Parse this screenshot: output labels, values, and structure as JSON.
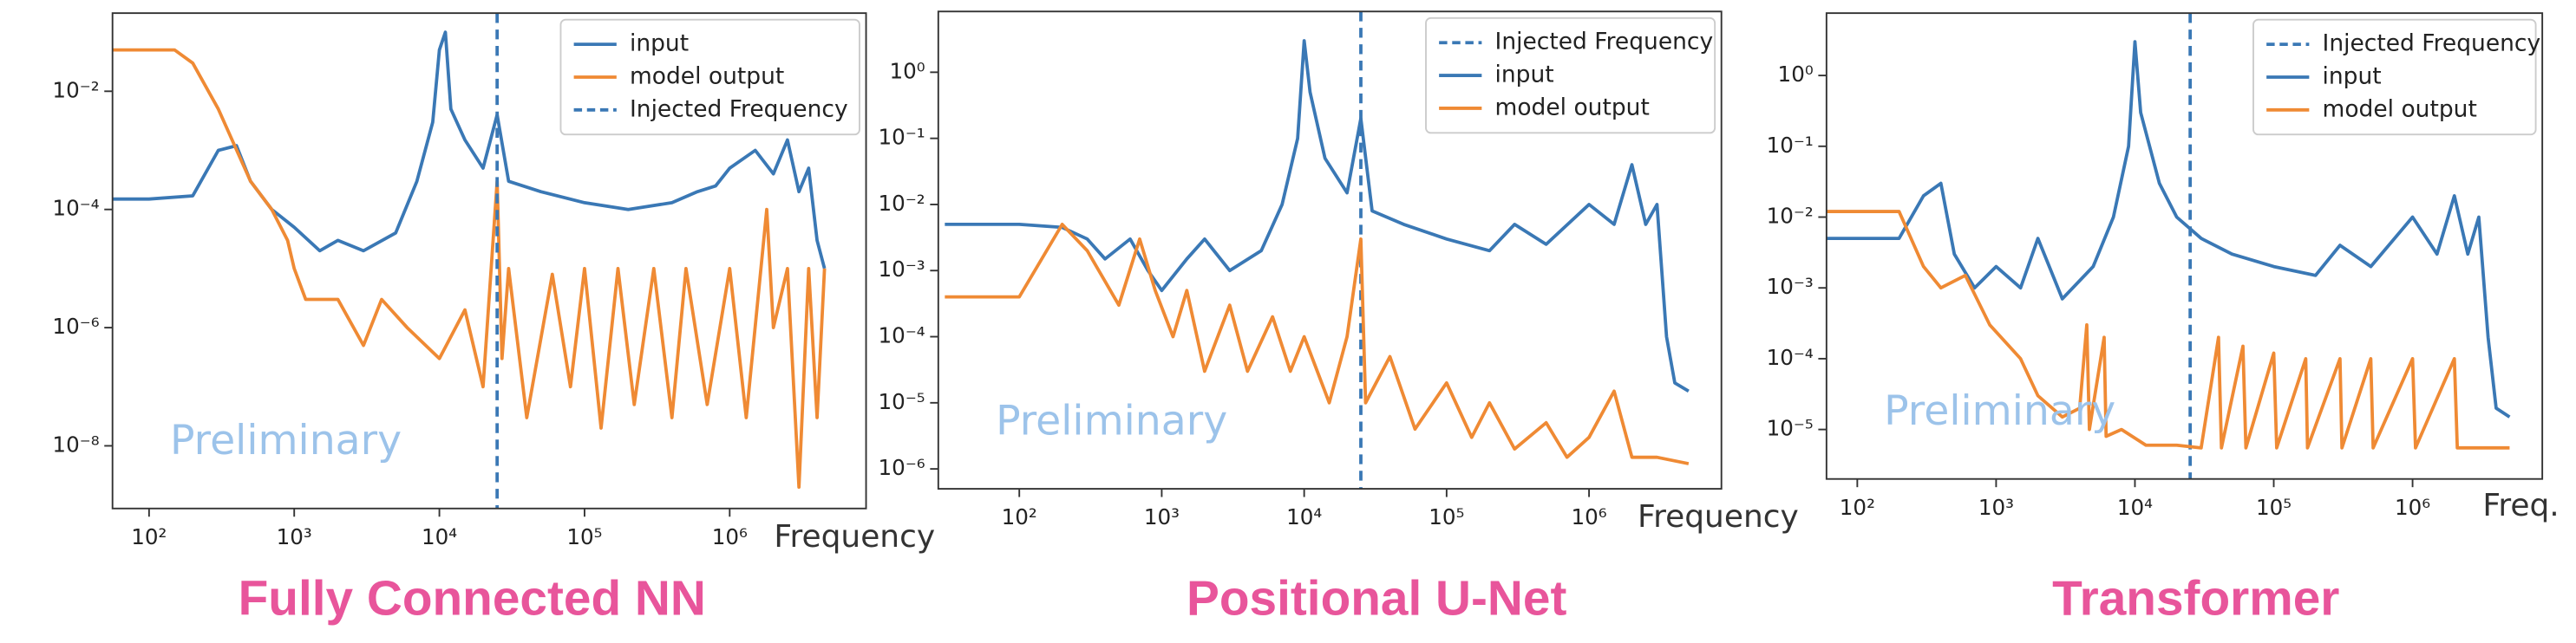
{
  "chart_data": [
    {
      "type": "line",
      "title": "Fully Connected NN",
      "xlabel": "Frequency",
      "annotation": "Preliminary",
      "xscale": "log",
      "yscale": "log",
      "legend": "upper right",
      "xlim": [
        56,
        8700000
      ],
      "ylim": [
        8.7e-10,
        0.21
      ],
      "xticks": [
        {
          "value": 100,
          "label": "10²"
        },
        {
          "value": 1000,
          "label": "10³"
        },
        {
          "value": 10000,
          "label": "10⁴"
        },
        {
          "value": 100000,
          "label": "10⁵"
        },
        {
          "value": 1000000,
          "label": "10⁶"
        }
      ],
      "yticks": [
        {
          "value": 0.01,
          "label": "10⁻²"
        },
        {
          "value": 0.0001,
          "label": "10⁻⁴"
        },
        {
          "value": 1e-06,
          "label": "10⁻⁶"
        },
        {
          "value": 1e-08,
          "label": "10⁻⁸"
        }
      ],
      "series": [
        {
          "name": "input",
          "color": "#3a78b5",
          "x": [
            56,
            100,
            200,
            300,
            400,
            500,
            700,
            1000,
            1500,
            2000,
            3000,
            5000,
            7000,
            9000,
            10000,
            11000,
            12000,
            15000,
            20000,
            25000,
            30000,
            50000,
            100000,
            200000,
            400000,
            600000,
            800000,
            1000000,
            1500000,
            2000000,
            2500000,
            3000000,
            3500000,
            4000000,
            4500000
          ],
          "values": [
            0.00015,
            0.00015,
            0.00017,
            0.001,
            0.0012,
            0.0003,
            0.0001,
            5e-05,
            2e-05,
            3e-05,
            2e-05,
            4e-05,
            0.0003,
            0.003,
            0.05,
            0.1,
            0.005,
            0.0015,
            0.0005,
            0.004,
            0.0003,
            0.0002,
            0.00013,
            0.0001,
            0.00013,
            0.0002,
            0.00025,
            0.0005,
            0.001,
            0.0004,
            0.0015,
            0.0002,
            0.0005,
            3e-05,
            1e-05
          ]
        },
        {
          "name": "model output",
          "color": "#ef8a34",
          "x": [
            56,
            150,
            200,
            300,
            500,
            700,
            900,
            1000,
            1200,
            2000,
            3000,
            4000,
            6000,
            10000,
            15000,
            20000,
            25000,
            27000,
            30000,
            40000,
            60000,
            80000,
            100000,
            130000,
            170000,
            220000,
            300000,
            400000,
            500000,
            700000,
            1000000,
            1300000,
            1800000,
            2000000,
            2500000,
            3000000,
            3500000,
            4000000,
            4500000
          ],
          "values": [
            0.05,
            0.05,
            0.03,
            0.005,
            0.0003,
            0.0001,
            3e-05,
            1e-05,
            3e-06,
            3e-06,
            5e-07,
            3e-06,
            1e-06,
            3e-07,
            2e-06,
            1e-07,
            0.0003,
            3e-07,
            1e-05,
            3e-08,
            8e-06,
            1e-07,
            1e-05,
            2e-08,
            1e-05,
            5e-08,
            1e-05,
            3e-08,
            1e-05,
            5e-08,
            1e-05,
            3e-08,
            0.0001,
            1e-06,
            1e-05,
            2e-09,
            1e-05,
            3e-08,
            1e-05
          ]
        },
        {
          "name": "Injected Frequency",
          "color": "#3a78b5",
          "linestyle": "dashed",
          "x": [
            25000
          ]
        }
      ]
    },
    {
      "type": "line",
      "title": "Positional U-Net",
      "xlabel": "Frequency",
      "annotation": "Preliminary",
      "xscale": "log",
      "yscale": "log",
      "legend": "upper right",
      "xlim": [
        27,
        8500000
      ],
      "ylim": [
        5e-07,
        8.3
      ],
      "xticks": [
        {
          "value": 100,
          "label": "10²"
        },
        {
          "value": 1000,
          "label": "10³"
        },
        {
          "value": 10000,
          "label": "10⁴"
        },
        {
          "value": 100000,
          "label": "10⁵"
        },
        {
          "value": 1000000,
          "label": "10⁶"
        }
      ],
      "yticks": [
        {
          "value": 1,
          "label": "10⁰"
        },
        {
          "value": 0.1,
          "label": "10⁻¹"
        },
        {
          "value": 0.01,
          "label": "10⁻²"
        },
        {
          "value": 0.001,
          "label": "10⁻³"
        },
        {
          "value": 0.0001,
          "label": "10⁻⁴"
        },
        {
          "value": 1e-05,
          "label": "10⁻⁵"
        },
        {
          "value": 1e-06,
          "label": "10⁻⁶"
        }
      ],
      "series": [
        {
          "name": "Injected Frequency",
          "color": "#3a78b5",
          "linestyle": "dashed",
          "x": [
            25000
          ]
        },
        {
          "name": "input",
          "color": "#3a78b5",
          "x": [
            30,
            100,
            200,
            300,
            400,
            600,
            800,
            1000,
            1500,
            2000,
            3000,
            5000,
            7000,
            9000,
            10000,
            11000,
            14000,
            20000,
            25000,
            30000,
            50000,
            100000,
            200000,
            300000,
            500000,
            1000000,
            1500000,
            2000000,
            2500000,
            3000000,
            3500000,
            4000000,
            5000000
          ],
          "values": [
            0.005,
            0.005,
            0.0045,
            0.003,
            0.0015,
            0.003,
            0.001,
            0.0005,
            0.0015,
            0.003,
            0.001,
            0.002,
            0.01,
            0.1,
            3,
            0.5,
            0.05,
            0.015,
            0.2,
            0.008,
            0.005,
            0.003,
            0.002,
            0.005,
            0.0025,
            0.01,
            0.005,
            0.04,
            0.005,
            0.01,
            0.0001,
            2e-05,
            1.5e-05
          ]
        },
        {
          "name": "model output",
          "color": "#ef8a34",
          "x": [
            30,
            100,
            200,
            300,
            500,
            700,
            900,
            1200,
            1500,
            2000,
            3000,
            4000,
            6000,
            8000,
            10000,
            15000,
            20000,
            25000,
            27000,
            40000,
            60000,
            100000,
            150000,
            200000,
            300000,
            500000,
            700000,
            1000000,
            1500000,
            2000000,
            3000000,
            5000000
          ],
          "values": [
            0.0004,
            0.0004,
            0.005,
            0.002,
            0.0003,
            0.003,
            0.0005,
            0.0001,
            0.0005,
            3e-05,
            0.0003,
            3e-05,
            0.0002,
            3e-05,
            0.0001,
            1e-05,
            0.0001,
            0.003,
            1e-05,
            5e-05,
            4e-06,
            2e-05,
            3e-06,
            1e-05,
            2e-06,
            5e-06,
            1.5e-06,
            3e-06,
            1.5e-05,
            1.5e-06,
            1.5e-06,
            1.2e-06
          ]
        }
      ]
    },
    {
      "type": "line",
      "title": "Transformer",
      "xlabel": "Freq.",
      "annotation": "Preliminary",
      "xscale": "log",
      "yscale": "log",
      "legend": "upper right",
      "xlim": [
        60,
        8600000
      ],
      "ylim": [
        2e-06,
        7.6
      ],
      "xticks": [
        {
          "value": 100,
          "label": "10²"
        },
        {
          "value": 1000,
          "label": "10³"
        },
        {
          "value": 10000,
          "label": "10⁴"
        },
        {
          "value": 100000,
          "label": "10⁵"
        },
        {
          "value": 1000000,
          "label": "10⁶"
        }
      ],
      "yticks": [
        {
          "value": 1,
          "label": "10⁰"
        },
        {
          "value": 0.1,
          "label": "10⁻¹"
        },
        {
          "value": 0.01,
          "label": "10⁻²"
        },
        {
          "value": 0.001,
          "label": "10⁻³"
        },
        {
          "value": 0.0001,
          "label": "10⁻⁴"
        },
        {
          "value": 1e-05,
          "label": "10⁻⁵"
        }
      ],
      "series": [
        {
          "name": "Injected Frequency",
          "color": "#3a78b5",
          "linestyle": "dashed",
          "x": [
            25000
          ]
        },
        {
          "name": "input",
          "color": "#3a78b5",
          "x": [
            60,
            200,
            300,
            400,
            500,
            700,
            1000,
            1500,
            2000,
            3000,
            5000,
            7000,
            9000,
            10000,
            11000,
            15000,
            20000,
            30000,
            50000,
            100000,
            200000,
            300000,
            500000,
            1000000,
            1500000,
            2000000,
            2500000,
            3000000,
            3500000,
            4000000,
            5000000
          ],
          "values": [
            0.005,
            0.005,
            0.02,
            0.03,
            0.003,
            0.001,
            0.002,
            0.001,
            0.005,
            0.0007,
            0.002,
            0.01,
            0.1,
            3,
            0.3,
            0.03,
            0.01,
            0.005,
            0.003,
            0.002,
            0.0015,
            0.004,
            0.002,
            0.01,
            0.003,
            0.02,
            0.003,
            0.01,
            0.0002,
            2e-05,
            1.5e-05
          ]
        },
        {
          "name": "model output",
          "color": "#ef8a34",
          "x": [
            60,
            200,
            300,
            400,
            600,
            900,
            1500,
            2000,
            3000,
            4000,
            4500,
            4700,
            6000,
            6200,
            8000,
            12000,
            20000,
            30000,
            40000,
            42000,
            60000,
            63000,
            100000,
            105000,
            170000,
            175000,
            300000,
            310000,
            500000,
            520000,
            1000000,
            1050000,
            2000000,
            2100000,
            5000000
          ],
          "values": [
            0.012,
            0.012,
            0.002,
            0.001,
            0.0015,
            0.0003,
            0.0001,
            3e-05,
            1.5e-05,
            2e-05,
            0.0003,
            1e-05,
            0.0002,
            8e-06,
            1e-05,
            6e-06,
            6e-06,
            5.5e-06,
            0.0002,
            5.5e-06,
            0.00015,
            5.5e-06,
            0.00012,
            5.5e-06,
            0.0001,
            5.5e-06,
            0.0001,
            5.5e-06,
            0.0001,
            5.5e-06,
            0.0001,
            5.5e-06,
            0.0001,
            5.5e-06,
            5.5e-06
          ]
        }
      ]
    }
  ]
}
